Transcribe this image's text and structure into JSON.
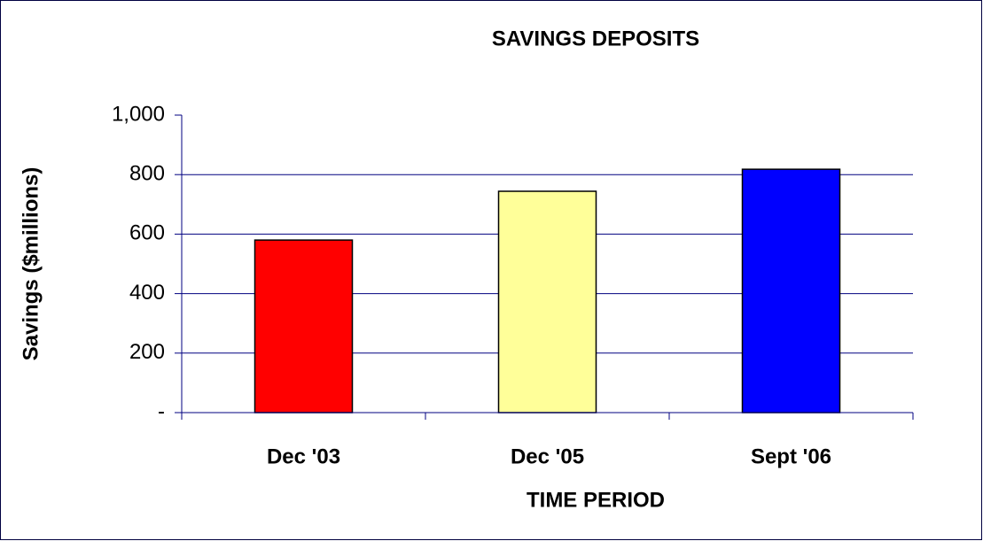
{
  "chart_data": {
    "type": "bar",
    "title": "SAVINGS DEPOSITS",
    "x_label": "TIME PERIOD",
    "y_label": "Savings ($millions)",
    "categories": [
      "Dec '03",
      "Dec '05",
      "Sept '06"
    ],
    "values": [
      580,
      744,
      818
    ],
    "colors": [
      "#ff0000",
      "#ffff99",
      "#0000ff"
    ],
    "ylim": [
      0,
      1000
    ],
    "yticks": [
      {
        "value": 0,
        "label": "-"
      },
      200,
      400,
      600,
      800,
      {
        "value": 1000,
        "label": "1,000"
      }
    ],
    "grid": true
  }
}
